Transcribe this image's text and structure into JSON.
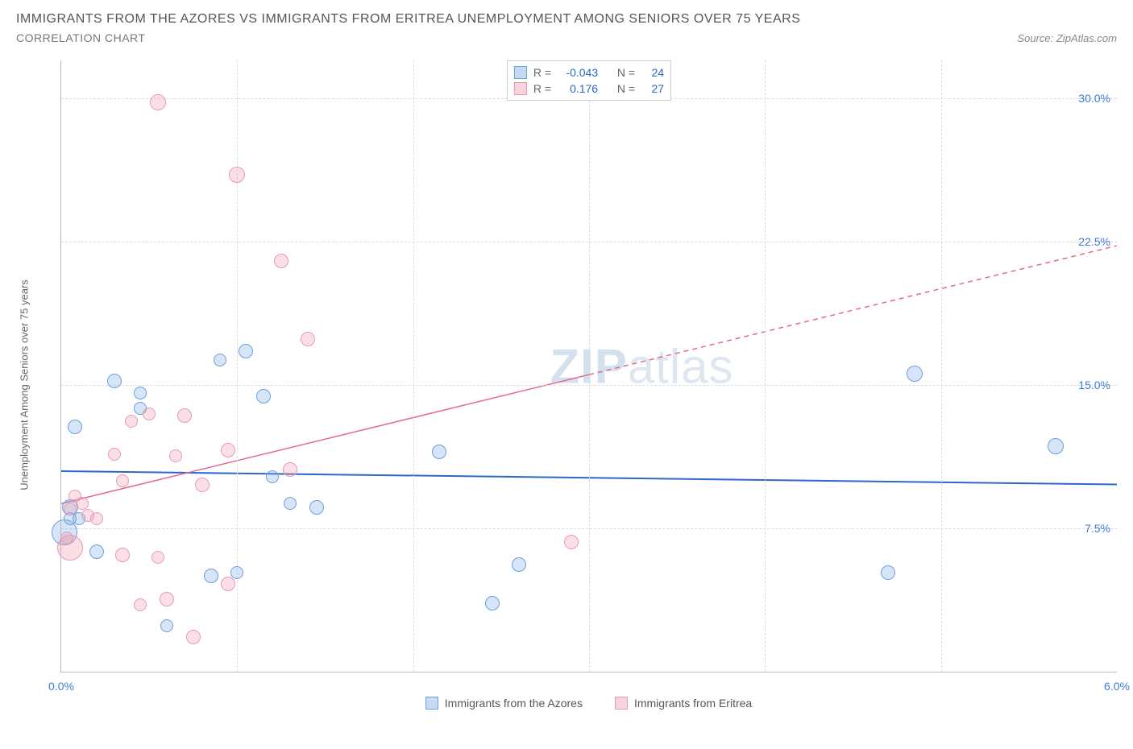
{
  "title": "IMMIGRANTS FROM THE AZORES VS IMMIGRANTS FROM ERITREA UNEMPLOYMENT AMONG SENIORS OVER 75 YEARS",
  "subtitle": "CORRELATION CHART",
  "source_label": "Source:",
  "source_name": "ZipAtlas.com",
  "y_axis_label": "Unemployment Among Seniors over 75 years",
  "watermark_bold": "ZIP",
  "watermark_light": "atlas",
  "chart": {
    "type": "scatter",
    "background": "#ffffff",
    "grid_color": "#dddddd",
    "axis_color": "#bbbbbb",
    "xlim": [
      0.0,
      6.0
    ],
    "ylim": [
      0.0,
      32.0
    ],
    "y_ticks": [
      {
        "v": 7.5,
        "label": "7.5%"
      },
      {
        "v": 15.0,
        "label": "15.0%"
      },
      {
        "v": 22.5,
        "label": "22.5%"
      },
      {
        "v": 30.0,
        "label": "30.0%"
      }
    ],
    "x_ticks": [
      {
        "v": 0.0,
        "label": "0.0%"
      },
      {
        "v": 6.0,
        "label": "6.0%"
      }
    ],
    "x_grid": [
      1.0,
      2.0,
      3.0,
      4.0,
      5.0
    ],
    "series": [
      {
        "name": "Immigrants from the Azores",
        "color_fill": "rgba(120,170,230,0.30)",
        "color_stroke": "#6aa0dd",
        "swatch_fill": "#c6dbf2",
        "swatch_border": "#6aa0dd",
        "R": "-0.043",
        "N": "24",
        "trend": {
          "x1": 0.0,
          "y1": 10.5,
          "x2": 6.0,
          "y2": 9.8,
          "color": "#2968c8",
          "width": 2,
          "dash": ""
        },
        "points": [
          {
            "x": 0.02,
            "y": 7.3,
            "r": 16
          },
          {
            "x": 0.08,
            "y": 12.8,
            "r": 9
          },
          {
            "x": 0.3,
            "y": 15.2,
            "r": 9
          },
          {
            "x": 0.45,
            "y": 14.6,
            "r": 8
          },
          {
            "x": 0.2,
            "y": 6.3,
            "r": 9
          },
          {
            "x": 0.6,
            "y": 2.4,
            "r": 8
          },
          {
            "x": 0.85,
            "y": 5.0,
            "r": 9
          },
          {
            "x": 1.0,
            "y": 5.2,
            "r": 8
          },
          {
            "x": 1.05,
            "y": 16.8,
            "r": 9
          },
          {
            "x": 1.2,
            "y": 10.2,
            "r": 8
          },
          {
            "x": 1.15,
            "y": 14.4,
            "r": 9
          },
          {
            "x": 1.3,
            "y": 8.8,
            "r": 8
          },
          {
            "x": 0.9,
            "y": 16.3,
            "r": 8
          },
          {
            "x": 1.45,
            "y": 8.6,
            "r": 9
          },
          {
            "x": 2.45,
            "y": 3.6,
            "r": 9
          },
          {
            "x": 2.6,
            "y": 5.6,
            "r": 9
          },
          {
            "x": 2.15,
            "y": 11.5,
            "r": 9
          },
          {
            "x": 4.7,
            "y": 5.2,
            "r": 9
          },
          {
            "x": 4.85,
            "y": 15.6,
            "r": 10
          },
          {
            "x": 5.65,
            "y": 11.8,
            "r": 10
          },
          {
            "x": 0.05,
            "y": 8.6,
            "r": 10
          },
          {
            "x": 0.45,
            "y": 13.8,
            "r": 8
          },
          {
            "x": 0.1,
            "y": 8.0,
            "r": 8
          },
          {
            "x": 0.05,
            "y": 8.0,
            "r": 8
          }
        ]
      },
      {
        "name": "Immigrants from Eritrea",
        "color_fill": "rgba(240,150,175,0.30)",
        "color_stroke": "#e89ab0",
        "swatch_fill": "#f7d3de",
        "swatch_border": "#e89ab0",
        "R": "0.176",
        "N": "27",
        "trend": {
          "x1": 0.0,
          "y1": 8.8,
          "x2": 6.0,
          "y2": 22.3,
          "color": "#e26a8d",
          "width": 1.5,
          "dash": ""
        },
        "trend_dashed_from_x": 3.0,
        "points": [
          {
            "x": 0.55,
            "y": 29.8,
            "r": 10
          },
          {
            "x": 1.0,
            "y": 26.0,
            "r": 10
          },
          {
            "x": 1.25,
            "y": 21.5,
            "r": 9
          },
          {
            "x": 1.4,
            "y": 17.4,
            "r": 9
          },
          {
            "x": 0.7,
            "y": 13.4,
            "r": 9
          },
          {
            "x": 0.95,
            "y": 11.6,
            "r": 9
          },
          {
            "x": 1.3,
            "y": 10.6,
            "r": 9
          },
          {
            "x": 0.5,
            "y": 13.5,
            "r": 8
          },
          {
            "x": 0.3,
            "y": 11.4,
            "r": 8
          },
          {
            "x": 0.8,
            "y": 9.8,
            "r": 9
          },
          {
            "x": 0.05,
            "y": 6.5,
            "r": 16
          },
          {
            "x": 0.05,
            "y": 8.5,
            "r": 8
          },
          {
            "x": 0.15,
            "y": 8.2,
            "r": 8
          },
          {
            "x": 0.2,
            "y": 8.0,
            "r": 8
          },
          {
            "x": 0.35,
            "y": 6.1,
            "r": 9
          },
          {
            "x": 0.55,
            "y": 6.0,
            "r": 8
          },
          {
            "x": 0.6,
            "y": 3.8,
            "r": 9
          },
          {
            "x": 0.45,
            "y": 3.5,
            "r": 8
          },
          {
            "x": 0.75,
            "y": 1.8,
            "r": 9
          },
          {
            "x": 0.95,
            "y": 4.6,
            "r": 9
          },
          {
            "x": 0.12,
            "y": 8.8,
            "r": 8
          },
          {
            "x": 0.4,
            "y": 13.1,
            "r": 8
          },
          {
            "x": 2.9,
            "y": 6.8,
            "r": 9
          },
          {
            "x": 0.03,
            "y": 7.0,
            "r": 8
          },
          {
            "x": 0.65,
            "y": 11.3,
            "r": 8
          },
          {
            "x": 0.08,
            "y": 9.2,
            "r": 8
          },
          {
            "x": 0.35,
            "y": 10.0,
            "r": 8
          }
        ]
      }
    ]
  },
  "legend": {
    "r_label": "R =",
    "n_label": "N ="
  }
}
